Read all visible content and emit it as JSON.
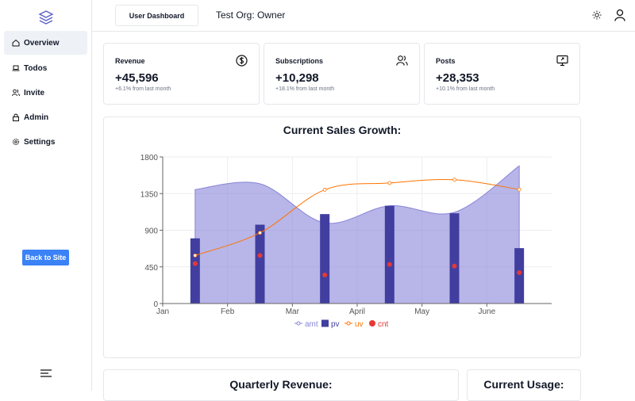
{
  "sidebar": {
    "items": [
      {
        "label": "Overview",
        "icon": "home-icon",
        "active": true
      },
      {
        "label": "Todos",
        "icon": "laptop-icon"
      },
      {
        "label": "Invite",
        "icon": "users-icon"
      },
      {
        "label": "Admin",
        "icon": "lock-icon"
      },
      {
        "label": "Settings",
        "icon": "gear-icon"
      }
    ],
    "back_label": "Back to Site"
  },
  "header": {
    "tab_label": "User Dashboard",
    "org_title": "Test Org: Owner"
  },
  "cards": [
    {
      "label": "Revenue",
      "value": "+45,596",
      "sub": "+6.1% from last month",
      "icon": "dollar-icon"
    },
    {
      "label": "Subscriptions",
      "value": "+10,298",
      "sub": "+18.1% from last month",
      "icon": "users-icon"
    },
    {
      "label": "Posts",
      "value": "+28,353",
      "sub": "+10.1% from last month",
      "icon": "monitor-icon"
    }
  ],
  "bottom": {
    "quarterly_title": "Quarterly Revenue:",
    "usage_title": "Current Usage:"
  },
  "colors": {
    "accent": "#3b82f6",
    "area": "#8884d8",
    "bar": "#413ea0",
    "line": "#ff7300",
    "scatter": "#e53935"
  },
  "chart_data": {
    "type": "bar",
    "title": "Current Sales Growth:",
    "x": [
      "Jan",
      "Feb",
      "Mar",
      "April",
      "May",
      "June"
    ],
    "ylim": [
      0,
      1800
    ],
    "yticks": [
      "0",
      "450",
      "900",
      "1350",
      "1800"
    ],
    "grid": true,
    "legend_position": "bottom",
    "series": [
      {
        "name": "amt",
        "type": "area",
        "x": [
          0.5,
          1.5,
          2.5,
          3.5,
          4.5,
          5.5
        ],
        "values": [
          1400,
          1470,
          990,
          1200,
          1120,
          1690
        ]
      },
      {
        "name": "pv",
        "type": "bar",
        "x": [
          0.5,
          1.5,
          2.5,
          3.5,
          4.5,
          5.5
        ],
        "values": [
          800,
          968,
          1098,
          1200,
          1108,
          680
        ]
      },
      {
        "name": "uv",
        "type": "line",
        "x": [
          0.5,
          1.5,
          2.5,
          3.5,
          4.5,
          5.5
        ],
        "values": [
          590,
          868,
          1397,
          1480,
          1520,
          1400
        ]
      },
      {
        "name": "cnt",
        "type": "scatter",
        "x": [
          0.5,
          1.5,
          2.5,
          3.5,
          4.5,
          5.5
        ],
        "values": [
          490,
          590,
          350,
          480,
          460,
          380
        ]
      }
    ]
  }
}
